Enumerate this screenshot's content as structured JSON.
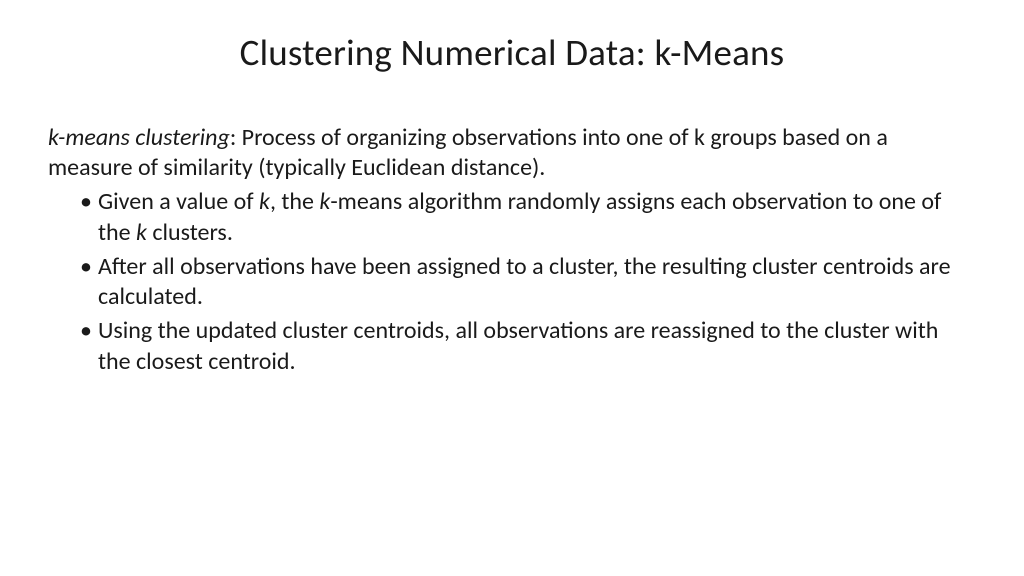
{
  "slide": {
    "title": "Clustering Numerical Data: k-Means",
    "background_color": "#ffffff",
    "text_color": "#1a1a1a",
    "title_fontsize": 37,
    "body_fontsize": 24,
    "line_height": 1.26,
    "font_family": "Calibri",
    "definition": {
      "term": "k-means clustering",
      "desc": ": Process of organizing observations into one of k groups based on a measure of similarity (typically Euclidean distance)."
    },
    "bullets": [
      {
        "pre": "Given a value of ",
        "i1": "k",
        "mid": ", the ",
        "i2": "k",
        "mid2": "-means algorithm randomly assigns each observation to one of the ",
        "i3": "k",
        "post": " clusters."
      },
      {
        "text": "After all observations have been assigned to a cluster, the resulting cluster centroids are calculated."
      },
      {
        "text": "Using the updated cluster centroids, all observations are reassigned to the cluster with the closest centroid."
      }
    ]
  }
}
